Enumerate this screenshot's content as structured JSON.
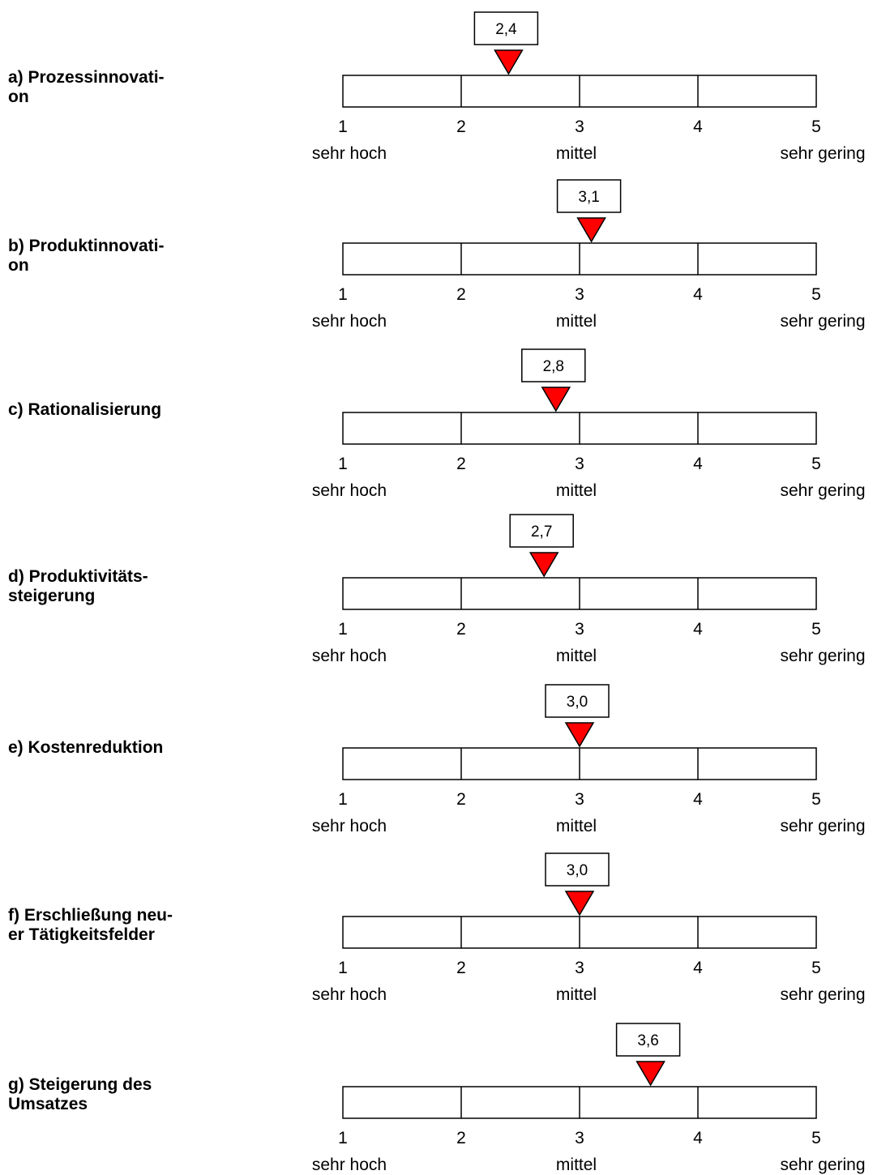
{
  "chart_data": {
    "type": "rating-scale",
    "scale": {
      "ticks": [
        "1",
        "2",
        "3",
        "4",
        "5"
      ],
      "range": [
        1,
        5
      ],
      "anchors": [
        {
          "value": 1,
          "label": "sehr hoch"
        },
        {
          "value": 3,
          "label": "mittel"
        },
        {
          "value": 5,
          "label": "sehr gering"
        }
      ]
    },
    "marker_color": "#ff0000",
    "items": [
      {
        "label": "a) Prozessinnovati-\non",
        "value": 2.4,
        "value_label": "2,4"
      },
      {
        "label": "b) Produktinnovati-\non",
        "value": 3.1,
        "value_label": "3,1"
      },
      {
        "label": "c) Rationalisierung",
        "value": 2.8,
        "value_label": "2,8"
      },
      {
        "label": "d) Produktivitäts-\nsteigerung",
        "value": 2.7,
        "value_label": "2,7"
      },
      {
        "label": "e) Kostenreduktion",
        "value": 3.0,
        "value_label": "3,0"
      },
      {
        "label": "f) Erschließung neu-\ner Tätigkeitsfelder",
        "value": 3.0,
        "value_label": "3,0"
      },
      {
        "label": "g) Steigerung des\nUmsatzes",
        "value": 3.6,
        "value_label": "3,6"
      }
    ]
  }
}
